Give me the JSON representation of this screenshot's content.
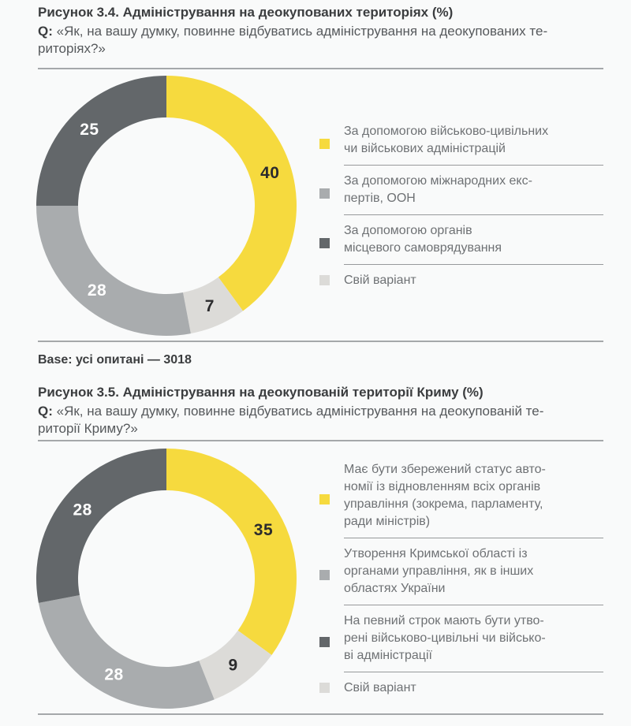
{
  "page": {
    "background": "#F9FAFA",
    "divider_color": "#A5A8AA",
    "title_color": "#3B3D3F",
    "question_color": "#56595C",
    "legend_text_color": "#6E7174"
  },
  "figure1": {
    "title": "Рисунок 3.4. Адміністрування на деокупованих територіях (%)",
    "q_prefix": "Q:",
    "question": "«Як, на вашу думку, повинне відбуватись адміністрування на деокупованих те-\nриторіях?»"
  },
  "base_note": "Base: усі опитані — 3018",
  "figure2": {
    "title": "Рисунок 3.5. Адміністрування на деокупованій території Криму (%)",
    "q_prefix": "Q:",
    "question": "«Як, на вашу думку, повинне відбуватись адміністрування на деокупованій те-\nриторії Криму?»"
  },
  "chart_data": [
    {
      "type": "pie",
      "variant": "donut",
      "title": "Рисунок 3.4. Адміністрування на деокупованих територіях (%)",
      "start_angle_deg": 0,
      "direction": "clockwise",
      "segments": [
        {
          "label": "За допомогою військово-цивільних чи військових адміністрацій",
          "value": 40,
          "color": "#F6DA3E",
          "value_color": "#2B2B2D"
        },
        {
          "label": "Свій варіант",
          "value": 7,
          "color": "#DCDBD8",
          "value_color": "#2B2B2D"
        },
        {
          "label": "За допомогою міжнародних експертів, ООН",
          "value": 28,
          "color": "#A9ACAE",
          "value_color": "#FFFFFF"
        },
        {
          "label": "За допомогою органів місцевого самоврядування",
          "value": 25,
          "color": "#63676A",
          "value_color": "#FFFFFF"
        }
      ],
      "legend": [
        {
          "text": "За допомогою військово-цивільних\nчи військових адміністрацій",
          "color": "#F6DA3E",
          "value": 40
        },
        {
          "text": "За допомогою міжнародних екс-\nпертів, ООН",
          "color": "#A9ACAE",
          "value": 28
        },
        {
          "text": "За допомогою органів\nмісцевого самоврядування",
          "color": "#63676A",
          "value": 25
        },
        {
          "text": "Свій варіант",
          "color": "#DCDBD8",
          "value": 7
        }
      ]
    },
    {
      "type": "pie",
      "variant": "donut",
      "title": "Рисунок 3.5. Адміністрування на деокупованій території Криму (%)",
      "start_angle_deg": 0,
      "direction": "clockwise",
      "segments": [
        {
          "label": "Має бути збережений статус автономії із відновленням всіх органів управління (зокрема, парламенту, ради міністрів)",
          "value": 35,
          "color": "#F6DA3E",
          "value_color": "#2B2B2D"
        },
        {
          "label": "Свій варіант",
          "value": 9,
          "color": "#DCDBD8",
          "value_color": "#2B2B2D"
        },
        {
          "label": "Утворення Кримської області із органами управління, як в інших областях України",
          "value": 28,
          "color": "#A9ACAE",
          "value_color": "#FFFFFF"
        },
        {
          "label": "На певний строк мають бути утворені військово-цивільні чи військові адміністрації",
          "value": 28,
          "color": "#63676A",
          "value_color": "#FFFFFF"
        }
      ],
      "legend": [
        {
          "text": "Має бути збережений статус авто-\nномії із відновленням всіх органів\nуправління (зокрема, парламенту,\nради міністрів)",
          "color": "#F6DA3E",
          "value": 35
        },
        {
          "text": "Утворення Кримської області із\nорганами управління, як в інших\nобластях України",
          "color": "#A9ACAE",
          "value": 28
        },
        {
          "text": "На певний строк мають бути утво-\nрені військово-цивільні чи військо-\nві адміністрації",
          "color": "#63676A",
          "value": 28
        },
        {
          "text": "Свій варіант",
          "color": "#DCDBD8",
          "value": 9
        }
      ]
    }
  ]
}
